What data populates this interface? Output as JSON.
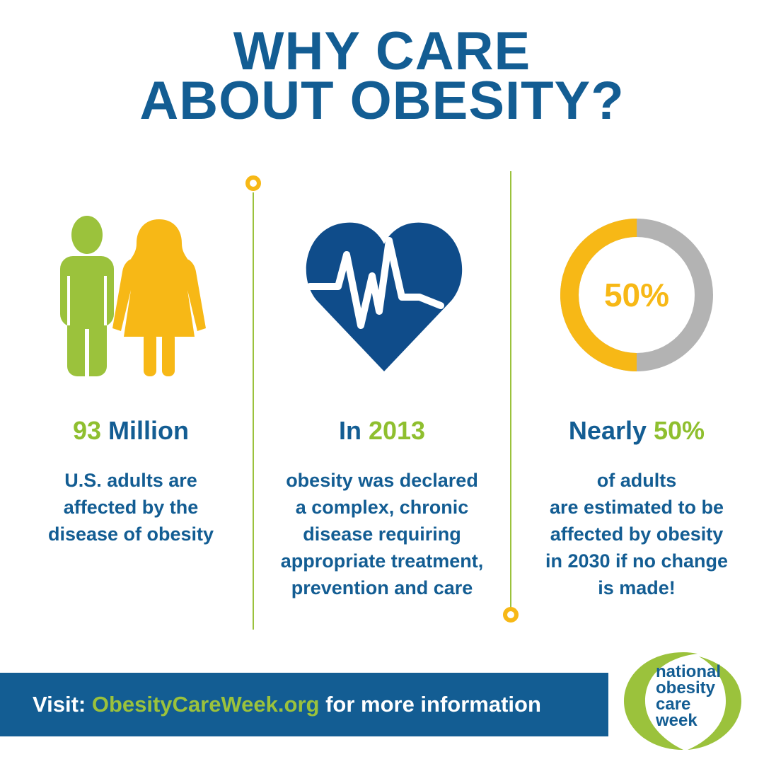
{
  "title": {
    "line1": "WHY CARE",
    "line2": "ABOUT OBESITY?"
  },
  "colors": {
    "blue": "#135d93",
    "green": "#8fbf2f",
    "gold": "#f7b816",
    "gray": "#b3b3b3",
    "heart": "#0f4c8a"
  },
  "columns": [
    {
      "icon": "man-woman-icon",
      "headline_highlight": "93",
      "headline_rest": " Million",
      "body": [
        "U.S. adults are",
        "affected by the",
        "disease of obesity"
      ]
    },
    {
      "icon": "heartbeat-icon",
      "headline_rest": "In ",
      "headline_highlight": "2013",
      "body": [
        "obesity was declared",
        "a complex, chronic",
        "disease requiring",
        "appropriate treatment,",
        "prevention and care"
      ]
    },
    {
      "icon": "donut-chart-icon",
      "donut_value": 0.5,
      "donut_label": "50%",
      "headline_rest": "Nearly ",
      "headline_highlight": "50%",
      "body": [
        "of adults",
        "are estimated to be",
        "affected by obesity",
        "in 2030 if no change",
        "is made!"
      ]
    }
  ],
  "footer": {
    "prefix": "Visit: ",
    "url": "ObesityCareWeek.org",
    "suffix": " for more information"
  },
  "logo": {
    "lines": [
      "national",
      "obesity",
      "care",
      "week"
    ]
  }
}
